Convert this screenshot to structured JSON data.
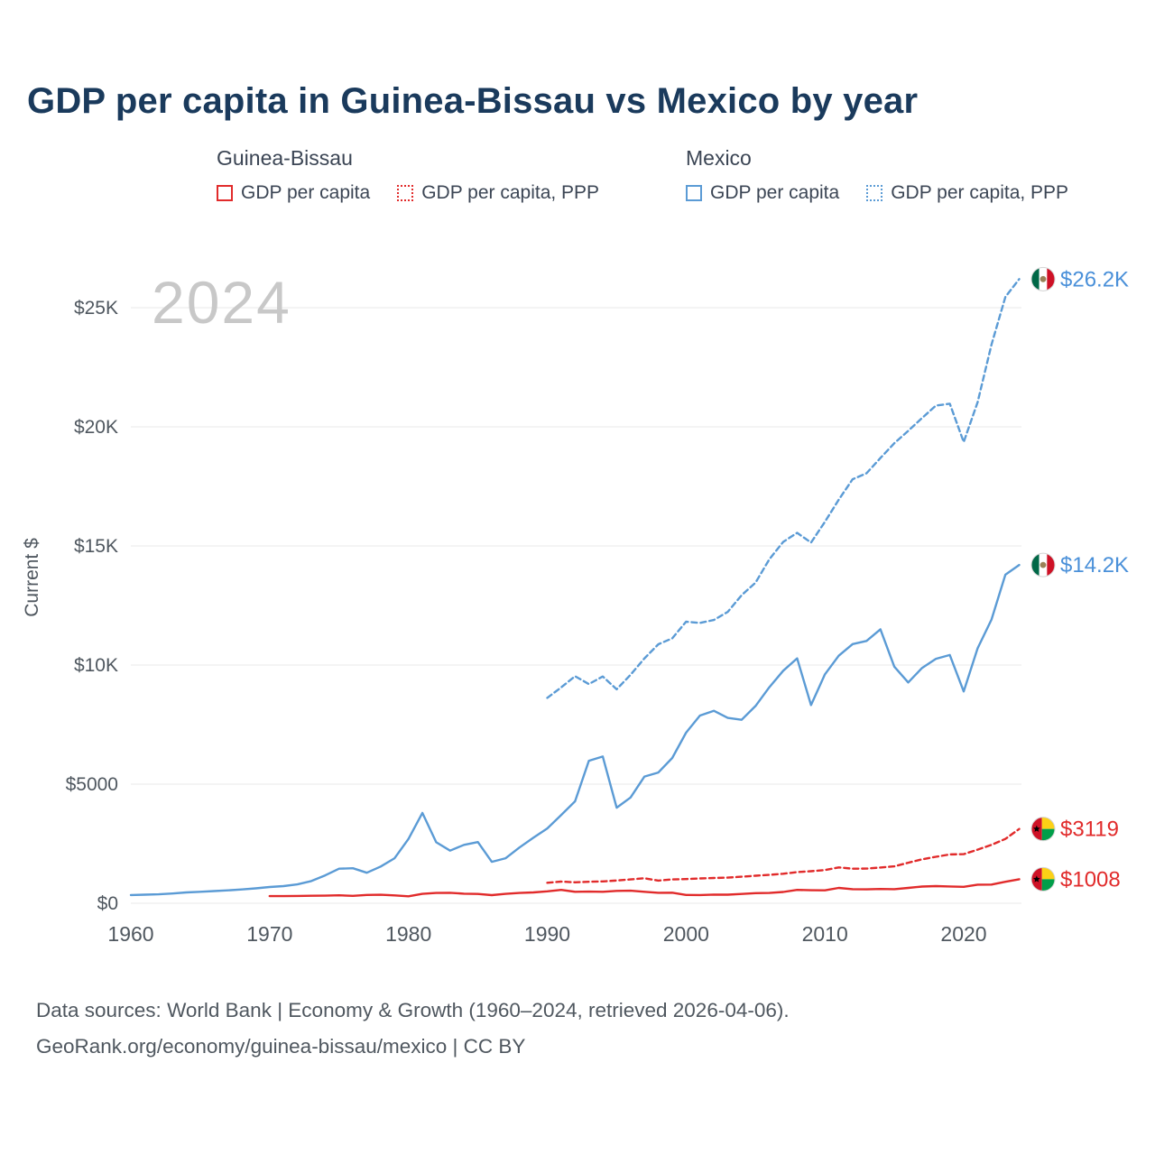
{
  "title": "GDP per capita in Guinea-Bissau vs Mexico by year",
  "watermark": "2024",
  "colors": {
    "guinea_bissau": "#e12b2b",
    "mexico": "#5b9bd5",
    "mexico_label": "#4a90d9",
    "title": "#1a3a5c",
    "axis_text": "#4f575f",
    "grid": "#ededed",
    "watermark": "#c8c8c8",
    "footer_text": "#4f575f"
  },
  "legend": {
    "groups": [
      {
        "country": "Guinea-Bissau",
        "entries": [
          {
            "label": "GDP per capita",
            "style": "solid"
          },
          {
            "label": "GDP per capita, PPP",
            "style": "dotted"
          }
        ]
      },
      {
        "country": "Mexico",
        "entries": [
          {
            "label": "GDP per capita",
            "style": "solid"
          },
          {
            "label": "GDP per capita, PPP",
            "style": "dotted"
          }
        ]
      }
    ]
  },
  "chart_data": {
    "type": "line",
    "title": "GDP per capita in Guinea-Bissau vs Mexico by year",
    "xlabel": "",
    "ylabel": "Current $",
    "x_range": [
      1958,
      2026
    ],
    "y_range": [
      0,
      26500
    ],
    "grid": "horizontal",
    "x_ticks": [
      1960,
      1970,
      1980,
      1990,
      2000,
      2010,
      2020
    ],
    "y_ticks": [
      {
        "value": 0,
        "label": "$0"
      },
      {
        "value": 5000,
        "label": "$5000"
      },
      {
        "value": 10000,
        "label": "$10K"
      },
      {
        "value": 15000,
        "label": "$15K"
      },
      {
        "value": 20000,
        "label": "$20K"
      },
      {
        "value": 25000,
        "label": "$25K"
      }
    ],
    "series": [
      {
        "id": "mexico-gdp-ppp",
        "name": "Mexico GDP per capita, PPP",
        "color": "#5b9bd5",
        "dash": true,
        "start_year": 1990,
        "values": [
          8620,
          9060,
          9530,
          9200,
          9520,
          8980,
          9590,
          10280,
          10870,
          11120,
          11820,
          11770,
          11890,
          12230,
          12930,
          13460,
          14440,
          15170,
          15550,
          15140,
          16010,
          16940,
          17800,
          18050,
          18690,
          19310,
          19830,
          20370,
          20890,
          20970,
          19360,
          21030,
          23450,
          25450,
          26200
        ]
      },
      {
        "id": "mexico-gdp",
        "name": "Mexico GDP per capita",
        "color": "#5b9bd5",
        "dash": false,
        "start_year": 1960,
        "values": [
          345,
          360,
          375,
          410,
          455,
          480,
          510,
          540,
          580,
          625,
          680,
          720,
          790,
          930,
          1170,
          1450,
          1470,
          1280,
          1540,
          1890,
          2700,
          3790,
          2560,
          2210,
          2450,
          2570,
          1740,
          1890,
          2340,
          2750,
          3140,
          3700,
          4280,
          5980,
          6160,
          4010,
          4440,
          5320,
          5490,
          6100,
          7160,
          7880,
          8080,
          7780,
          7700,
          8280,
          9070,
          9760,
          10280,
          8320,
          9610,
          10390,
          10880,
          11010,
          11500,
          9930,
          9270,
          9880,
          10260,
          10420,
          8890,
          10700,
          11910,
          13790,
          14200
        ]
      },
      {
        "id": "guinea-bissau-gdp-ppp",
        "name": "Guinea-Bissau GDP per capita, PPP",
        "color": "#e12b2b",
        "dash": true,
        "start_year": 1990,
        "values": [
          860,
          910,
          880,
          900,
          915,
          955,
          1000,
          1050,
          950,
          1000,
          1015,
          1040,
          1060,
          1075,
          1115,
          1155,
          1195,
          1240,
          1305,
          1345,
          1395,
          1505,
          1450,
          1455,
          1500,
          1550,
          1700,
          1845,
          1950,
          2050,
          2060,
          2250,
          2450,
          2700,
          3119
        ]
      },
      {
        "id": "guinea-bissau-gdp",
        "name": "Guinea-Bissau GDP per capita",
        "color": "#e12b2b",
        "dash": false,
        "start_year": 1970,
        "values": [
          300,
          300,
          305,
          315,
          320,
          335,
          310,
          350,
          355,
          330,
          290,
          395,
          430,
          440,
          400,
          390,
          340,
          395,
          430,
          455,
          500,
          560,
          480,
          490,
          480,
          520,
          525,
          480,
          440,
          445,
          350,
          345,
          365,
          360,
          390,
          425,
          430,
          475,
          560,
          545,
          540,
          645,
          590,
          585,
          600,
          590,
          645,
          700,
          720,
          705,
          690,
          780,
          785,
          900,
          1008
        ]
      }
    ],
    "end_labels": [
      {
        "text": "$26.2K",
        "flag": "mx",
        "value": 26200,
        "color": "#4a90d9"
      },
      {
        "text": "$14.2K",
        "flag": "mx",
        "value": 14200,
        "color": "#4a90d9"
      },
      {
        "text": "$3119",
        "flag": "gw",
        "value": 3119,
        "color": "#e12b2b"
      },
      {
        "text": "$1008",
        "flag": "gw",
        "value": 1008,
        "color": "#e12b2b"
      }
    ]
  },
  "footer": {
    "line1": "Data sources: World Bank | Economy & Growth (1960–2024, retrieved 2026-04-06).",
    "line2": "GeoRank.org/economy/guinea-bissau/mexico | CC BY"
  }
}
